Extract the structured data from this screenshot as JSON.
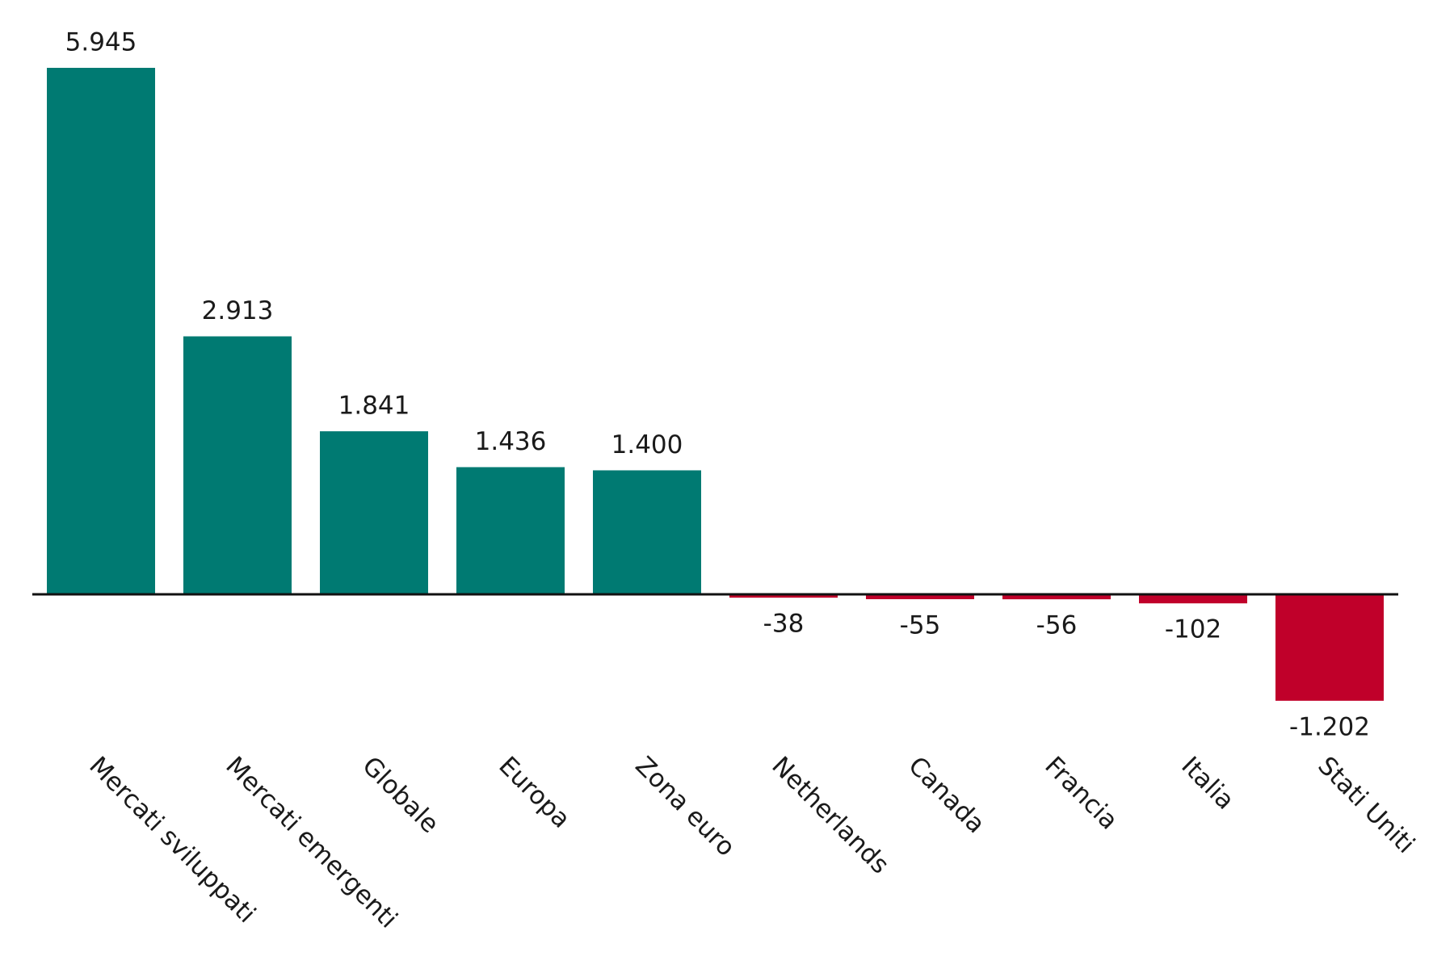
{
  "chart_data": {
    "type": "bar",
    "categories": [
      "Mercati sviluppati",
      "Mercati emergenti",
      "Globale",
      "Europa",
      "Zona euro",
      "Netherlands",
      "Canada",
      "Francia",
      "Italia",
      "Stati Uniti"
    ],
    "values": [
      5945,
      2913,
      1841,
      1436,
      1400,
      -38,
      -55,
      -56,
      -102,
      -1202
    ],
    "value_labels": [
      "5.945",
      "2.913",
      "1.841",
      "1.436",
      "1.400",
      "-38",
      "-55",
      "-56",
      "-102",
      "-1.202"
    ],
    "color_positive": "#007a72",
    "color_negative": "#c0002a"
  }
}
